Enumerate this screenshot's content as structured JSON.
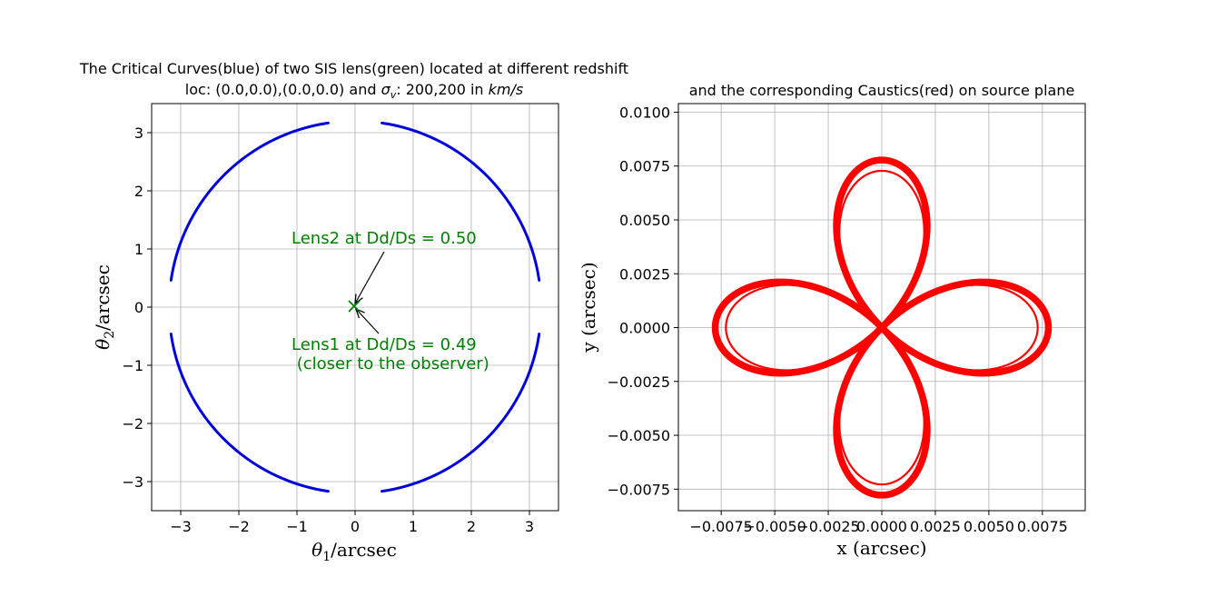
{
  "chart_data": [
    {
      "type": "scatter",
      "title": "The Critical Curves(blue) of two SIS lens(green) located at different redshift",
      "subtitle_parts": [
        "loc: (0.0,0.0),(0.0,0.0) and ",
        "σ",
        "v",
        ": 200,200 in ",
        "km/s"
      ],
      "xlabel_parts": [
        "θ",
        "1",
        "/arcsec"
      ],
      "ylabel_parts": [
        "θ",
        "2",
        "/arcsec"
      ],
      "xlim": [
        -3.5,
        3.5
      ],
      "ylim": [
        -3.5,
        3.5
      ],
      "xticks": [
        -3,
        -2,
        -1,
        0,
        1,
        2,
        3
      ],
      "yticks": [
        -3,
        -2,
        -1,
        0,
        1,
        2,
        3
      ],
      "xtick_labels": [
        "−3",
        "−2",
        "−1",
        "0",
        "1",
        "2",
        "3"
      ],
      "ytick_labels": [
        "−3",
        "−2",
        "−1",
        "0",
        "1",
        "2",
        "3"
      ],
      "grid": true,
      "critical_curve": {
        "color": "#0000dd",
        "radius": 3.2,
        "arcs_deg": [
          [
            8.3,
            81.7
          ],
          [
            98.3,
            171.7
          ],
          [
            188.3,
            261.7
          ],
          [
            278.3,
            351.7
          ]
        ]
      },
      "lens_marker": {
        "x": 0.0,
        "y": 0.0,
        "marker": "x",
        "color": "#008000"
      },
      "annotations": [
        {
          "text": "Lens2 at Dd/Ds = 0.50",
          "text_at": [
            -1.1,
            1.1
          ],
          "arrow_to": [
            0.0,
            0.0
          ],
          "color": "#008000"
        },
        {
          "text": "Lens1 at Dd/Ds = 0.49",
          "text2": " (closer to the observer)",
          "text_at": [
            -1.1,
            -0.7
          ],
          "arrow_to": [
            0.0,
            0.0
          ],
          "color": "#008000"
        }
      ]
    },
    {
      "type": "scatter",
      "title": "and the corresponding Caustics(red) on source plane",
      "xlabel": "x (arcsec)",
      "ylabel": "y (arcsec)",
      "xlim": [
        -0.0095,
        0.0095
      ],
      "ylim": [
        -0.0085,
        0.0104
      ],
      "xticks": [
        -0.0075,
        -0.005,
        -0.0025,
        0.0,
        0.0025,
        0.005,
        0.0075
      ],
      "yticks": [
        -0.0075,
        -0.005,
        -0.0025,
        0.0,
        0.0025,
        0.005,
        0.0075,
        0.01
      ],
      "xtick_labels": [
        "−0.0075",
        "−0.0050",
        "−0.0025",
        "0.0000",
        "0.0025",
        "0.0050",
        "0.0075"
      ],
      "ytick_labels": [
        "−0.0075",
        "−0.0050",
        "−0.0025",
        "0.0000",
        "0.0025",
        "0.0050",
        "0.0075",
        "0.0100"
      ],
      "grid": true,
      "caustic": {
        "color": "#ff0000",
        "shape": "four-lobed (cos 2θ)",
        "lobe_tip_radius": 0.0083,
        "lobe_extent": {
          "x": [
            -0.0065,
            0.0065
          ],
          "y": [
            -0.0064,
            0.0064
          ]
        }
      }
    }
  ]
}
